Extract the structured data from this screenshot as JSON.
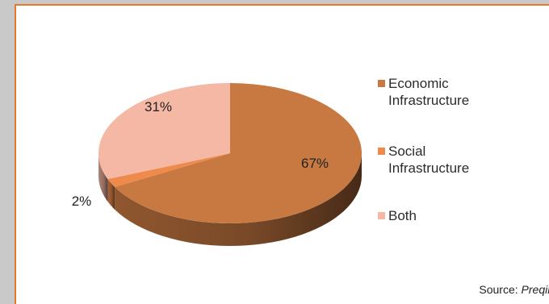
{
  "chart_data": {
    "type": "pie",
    "style": "3d",
    "slices": [
      {
        "label": "Economic Infrastructure",
        "value": 67,
        "display": "67%",
        "color": "#c87941"
      },
      {
        "label": "Social Infrastructure",
        "value": 2,
        "display": "2%",
        "color": "#ef8a4d"
      },
      {
        "label": "Both",
        "value": 31,
        "display": "31%",
        "color": "#f4b8a4"
      }
    ],
    "legend": {
      "position": "right",
      "entries": [
        "Economic Infrastructure",
        "Social Infrastructure",
        "Both"
      ]
    }
  },
  "legend_lines": [
    [
      "Economic",
      "Infrastructure"
    ],
    [
      "Social",
      "Infrastructure"
    ],
    [
      "Both"
    ]
  ],
  "source": {
    "prefix": "Source:",
    "name": "Preqin"
  },
  "colors": {
    "frame_border": "#e8762c",
    "outer_bg": "#c9c9c9"
  }
}
